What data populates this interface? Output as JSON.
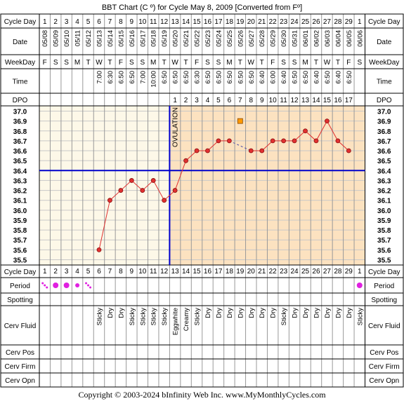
{
  "title": "BBT Chart (C º) for Cycle May 8, 2009  [Converted from Fº]",
  "footer": "Copyright © 2003-2024 bInfinity Web Inc.    www.MyMonthlyCycles.com",
  "row_labels": {
    "cycle_day": "Cycle Day",
    "date": "Date",
    "weekday": "WeekDay",
    "time": "Time",
    "dpo": "DPO",
    "period": "Period",
    "spotting": "Spotting",
    "cerv_fluid": "Cerv Fluid",
    "cerv_pos": "Cerv Pos",
    "cerv_firm": "Cerv Firm",
    "cerv_opn": "Cerv Opn"
  },
  "ovulation_label": "OVULATION",
  "colors": {
    "pre_ovulation_bg": "#fdf8e8",
    "post_ovulation_bg": "#fce2c0",
    "grid": "#c8c8c8",
    "line": "#e03030",
    "point": "#e03030",
    "coverline": "#0000cc",
    "period_dot": "#e020e0",
    "marker": "#ff9900"
  },
  "chart_data": {
    "type": "line",
    "ylim": [
      35.5,
      37.0
    ],
    "yticks": [
      "37.0",
      "36.9",
      "36.8",
      "36.7",
      "36.6",
      "36.5",
      "36.4",
      "36.3",
      "36.2",
      "36.1",
      "36.0",
      "35.9",
      "35.8",
      "35.7",
      "35.6",
      "35.5"
    ],
    "cycle_days": [
      "1",
      "2",
      "3",
      "4",
      "5",
      "6",
      "7",
      "8",
      "9",
      "10",
      "11",
      "12",
      "13",
      "14",
      "15",
      "16",
      "17",
      "18",
      "19",
      "20",
      "21",
      "22",
      "23",
      "24",
      "25",
      "26",
      "27",
      "28",
      "29",
      "1"
    ],
    "dates": [
      "05/08",
      "05/09",
      "05/10",
      "05/11",
      "05/12",
      "05/13",
      "05/14",
      "05/15",
      "05/16",
      "05/17",
      "05/18",
      "05/19",
      "05/20",
      "05/21",
      "05/22",
      "05/23",
      "05/24",
      "05/25",
      "05/26",
      "05/27",
      "05/28",
      "05/29",
      "05/30",
      "05/31",
      "06/01",
      "06/02",
      "06/03",
      "06/04",
      "06/05",
      "06/06"
    ],
    "weekdays": [
      "F",
      "S",
      "S",
      "M",
      "T",
      "W",
      "T",
      "F",
      "S",
      "S",
      "M",
      "T",
      "W",
      "T",
      "F",
      "S",
      "S",
      "M",
      "T",
      "W",
      "T",
      "F",
      "S",
      "S",
      "M",
      "T",
      "W",
      "T",
      "F",
      "S"
    ],
    "times": [
      "",
      "",
      "",
      "",
      "",
      "7:00",
      "6:30",
      "6:50",
      "6:50",
      "7:00",
      "10:00",
      "6:50",
      "6:50",
      "6:50",
      "6:30",
      "6:50",
      "6:50",
      "6:50",
      "6:50",
      "6:50",
      "6:40",
      "6:00",
      "6:40",
      "6:50",
      "6:50",
      "6:40",
      "6:50",
      "6:40",
      "6:50",
      ""
    ],
    "dpo": [
      "",
      "",
      "",
      "",
      "",
      "",
      "",
      "",
      "",
      "",
      "",
      "",
      "1",
      "2",
      "3",
      "4",
      "5",
      "6",
      "7",
      "8",
      "9",
      "10",
      "11",
      "12",
      "13",
      "14",
      "15",
      "16",
      "17",
      ""
    ],
    "temperatures": [
      null,
      null,
      null,
      null,
      null,
      35.6,
      36.1,
      36.2,
      36.3,
      36.2,
      36.3,
      36.1,
      36.2,
      36.5,
      36.6,
      36.6,
      36.7,
      36.7,
      null,
      36.6,
      36.6,
      36.7,
      36.7,
      36.7,
      36.8,
      36.7,
      36.9,
      36.7,
      36.6,
      null
    ],
    "dashed_gap_after_day": 18,
    "marker_day": 19,
    "marker_temp": 36.9,
    "coverline": 36.4,
    "ovulation_after_day": 12,
    "period": [
      "light",
      "heavy",
      "heavy",
      "medium",
      "light",
      "",
      "",
      "",
      "",
      "",
      "",
      "",
      "",
      "",
      "",
      "",
      "",
      "",
      "",
      "",
      "",
      "",
      "",
      "",
      "",
      "",
      "",
      "",
      "",
      "heavy"
    ],
    "cerv_fluid": [
      "",
      "",
      "",
      "",
      "",
      "Sticky",
      "Dry",
      "Dry",
      "Sticky",
      "Sticky",
      "Sticky",
      "Sticky",
      "Eggwhite",
      "Creamy",
      "Sticky",
      "Dry",
      "Dry",
      "Dry",
      "Dry",
      "Dry",
      "Dry",
      "Dry",
      "Sticky",
      "Dry",
      "Dry",
      "Dry",
      "Dry",
      "Dry",
      "Dry",
      "Sticky"
    ]
  }
}
